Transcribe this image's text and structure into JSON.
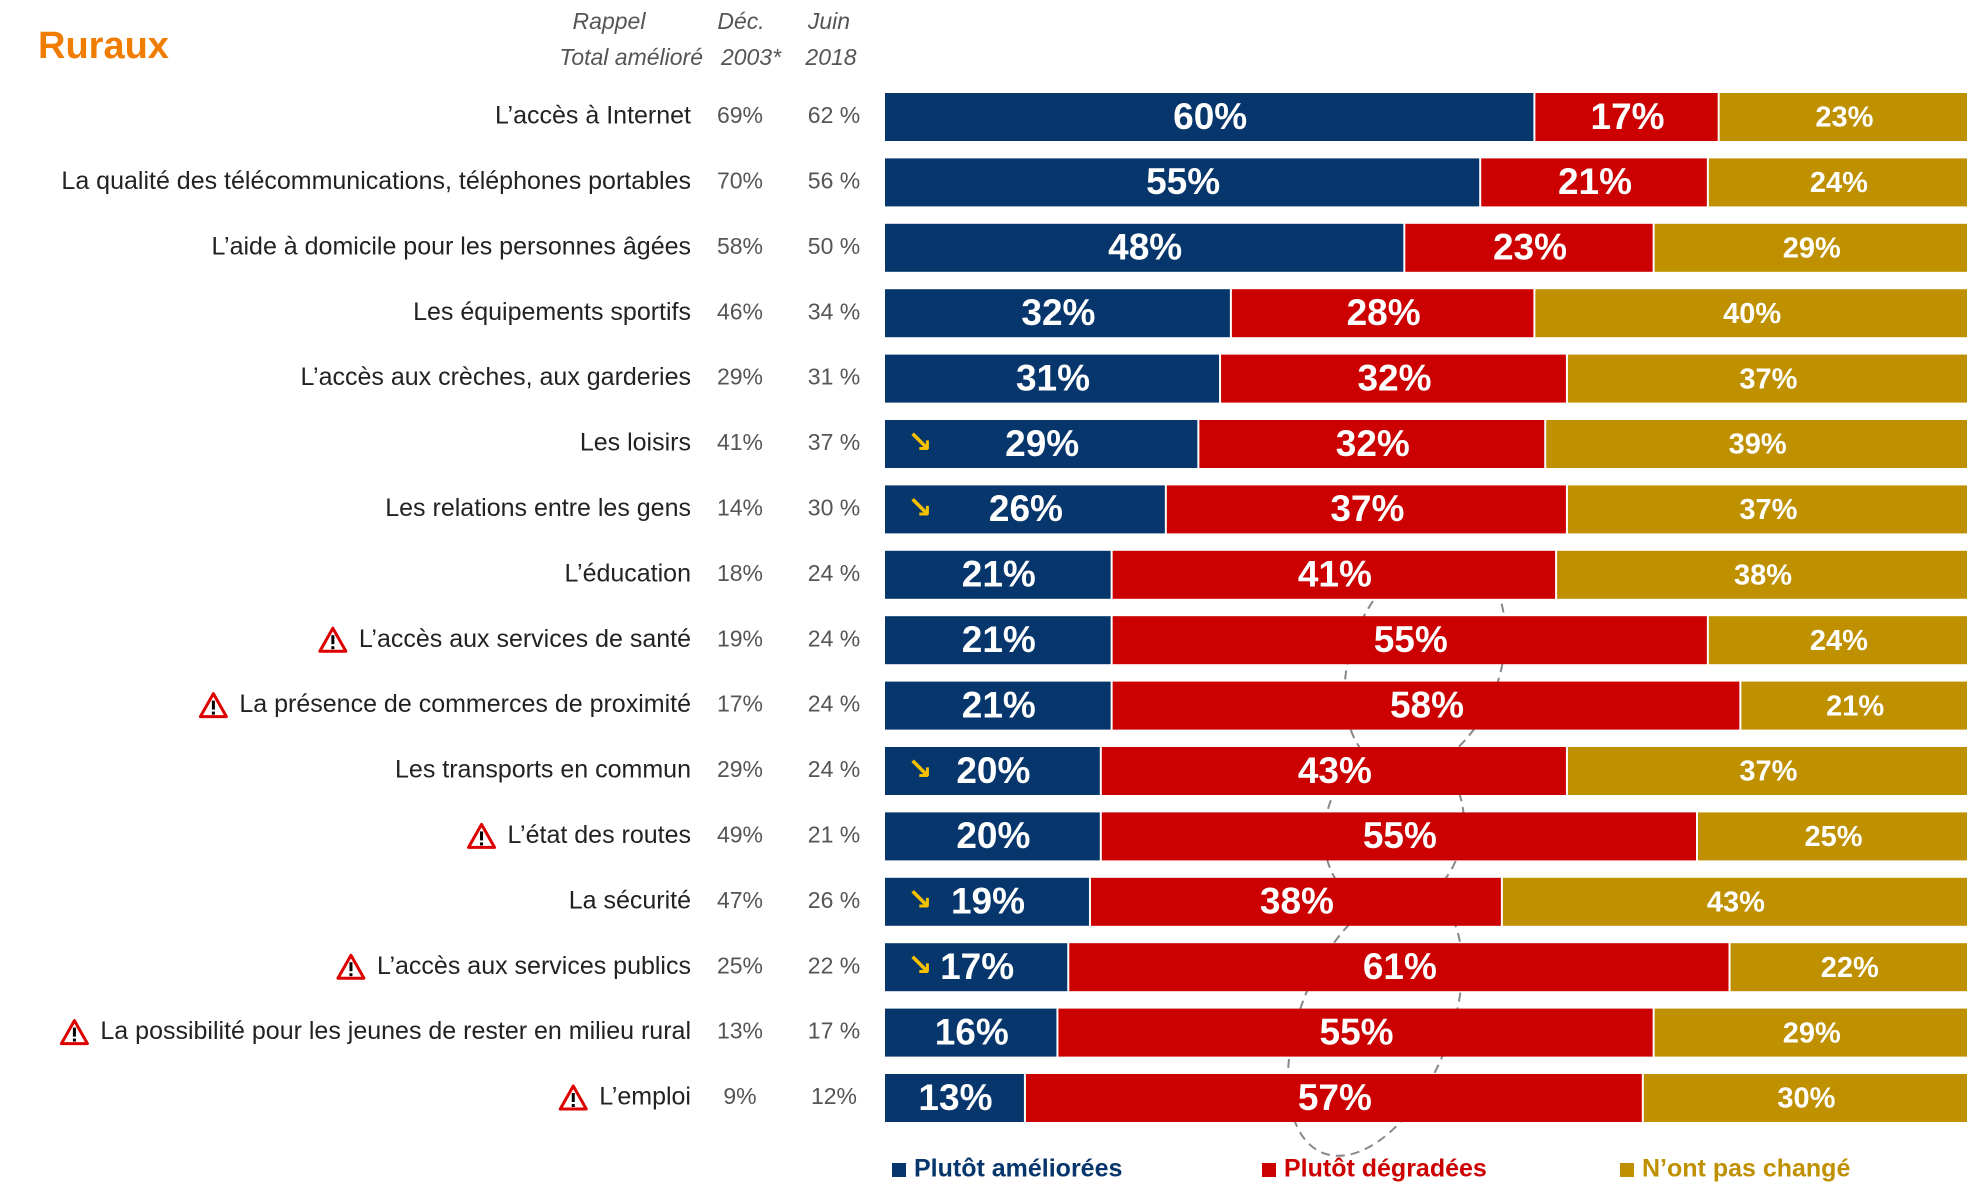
{
  "chart_data": {
    "type": "stacked-bar",
    "orientation": "horizontal",
    "title": "Ruraux",
    "header": {
      "rappel": "Rappel",
      "total": "Total amélioré",
      "dec": "Déc.",
      "dec_year": "2003*",
      "juin": "Juin",
      "juin_year": "2018"
    },
    "categories": [
      "L’accès à Internet",
      "La qualité des télécommunications, téléphones portables",
      "L’aide à domicile pour les personnes âgées",
      "Les équipements sportifs",
      "L’accès aux crèches, aux garderies",
      "Les loisirs",
      "Les relations entre les gens",
      "L’éducation",
      "L’accès aux services de santé",
      "La présence de commerces de proximité",
      "Les transports en commun",
      "L’état des routes",
      "La sécurité",
      "L’accès aux services publics",
      "La possibilité pour les jeunes de rester en milieu rural",
      "L’emploi"
    ],
    "dec_2003": [
      "69%",
      "70%",
      "58%",
      "46%",
      "29%",
      "41%",
      "14%",
      "18%",
      "19%",
      "17%",
      "29%",
      "49%",
      "47%",
      "25%",
      "13%",
      "9%"
    ],
    "juin_2018": [
      "62 %",
      "56 %",
      "50 %",
      "34 %",
      "31 %",
      "37 %",
      "30 %",
      "24 %",
      "24 %",
      "24 %",
      "24 %",
      "21 %",
      "26 %",
      "22 %",
      "17 %",
      "12%"
    ],
    "alert": [
      false,
      false,
      false,
      false,
      false,
      false,
      false,
      false,
      true,
      true,
      false,
      true,
      false,
      true,
      true,
      true
    ],
    "decline": [
      false,
      false,
      false,
      false,
      false,
      true,
      true,
      false,
      false,
      false,
      true,
      false,
      true,
      true,
      false,
      false
    ],
    "xlim": [
      0,
      100
    ],
    "series": [
      {
        "name": "Plutôt améliorées",
        "color": "#06366b",
        "values": [
          60,
          55,
          48,
          32,
          31,
          29,
          26,
          21,
          21,
          21,
          20,
          20,
          19,
          17,
          16,
          13
        ],
        "value_labels": [
          "60%",
          "55%",
          "48%",
          "32%",
          "31%",
          "29%",
          "26%",
          "21%",
          "21%",
          "21%",
          "20%",
          "20%",
          "19%",
          "17%",
          "16%",
          "13%"
        ]
      },
      {
        "name": "Plutôt dégradées",
        "color": "#cc0000",
        "values": [
          17,
          21,
          23,
          28,
          32,
          32,
          37,
          41,
          55,
          58,
          43,
          55,
          38,
          61,
          55,
          57
        ],
        "value_labels": [
          "17%",
          "21%",
          "23%",
          "28%",
          "32%",
          "32%",
          "37%",
          "41%",
          "55%",
          "58%",
          "43%",
          "55%",
          "38%",
          "61%",
          "55%",
          "57%"
        ]
      },
      {
        "name": "N’ont pas changé",
        "color": "#bf9000",
        "values": [
          23,
          24,
          29,
          40,
          37,
          39,
          37,
          38,
          24,
          21,
          37,
          25,
          43,
          22,
          29,
          30
        ],
        "value_labels": [
          "23%",
          "24%",
          "29%",
          "40%",
          "37%",
          "39%",
          "37%",
          "38%",
          "24%",
          "21%",
          "37%",
          "25%",
          "43%",
          "22%",
          "29%",
          "30%"
        ]
      }
    ],
    "legend": "bottom"
  }
}
